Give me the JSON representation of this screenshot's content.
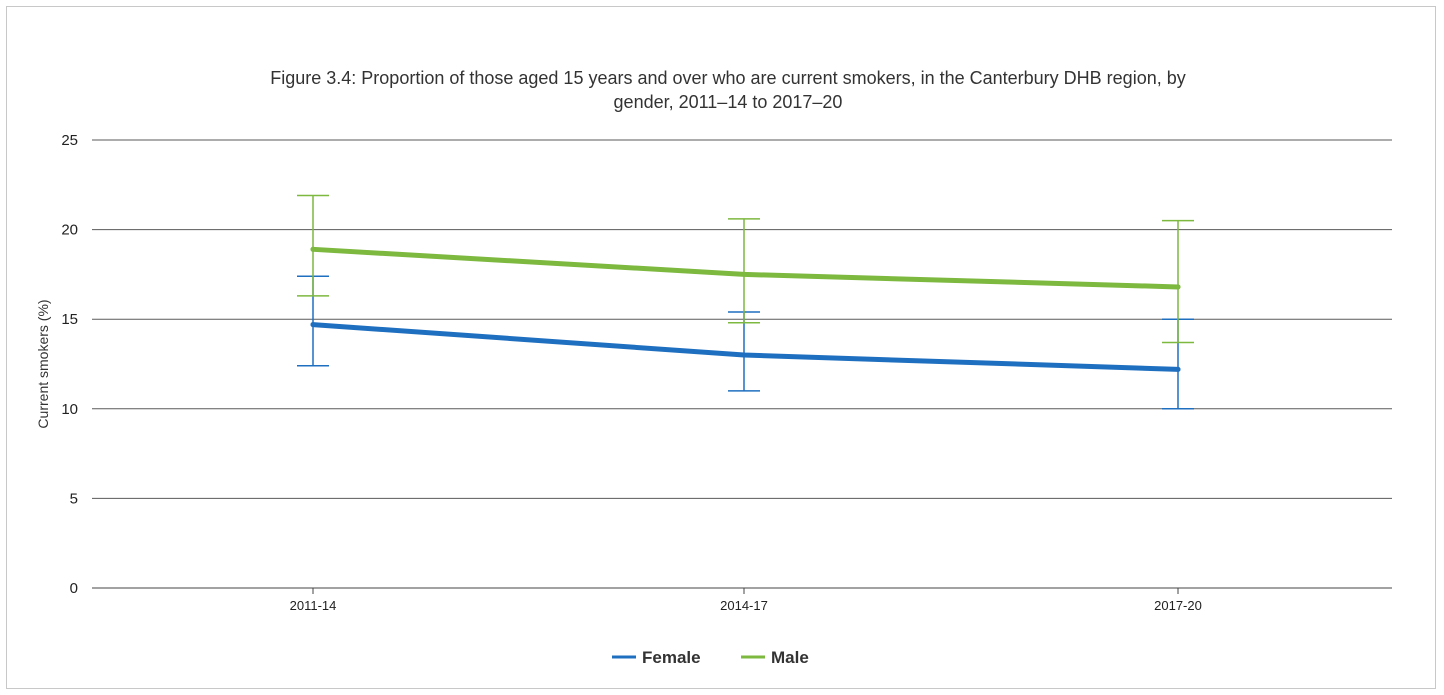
{
  "chart_data": {
    "type": "line",
    "title_line1": "Figure 3.4: Proportion of those aged 15 years and over who are current smokers, in the Canterbury DHB region, by",
    "title_line2": "gender, 2011–14 to 2017–20",
    "ylabel": "Current smokers (%)",
    "xlabel": "",
    "categories": [
      "2011-14",
      "2014-17",
      "2017-20"
    ],
    "ylim": [
      0,
      25
    ],
    "yticks": [
      0,
      5,
      10,
      15,
      20,
      25
    ],
    "grid": true,
    "legend_position": "bottom-center",
    "series": [
      {
        "name": "Female",
        "color": "#1f6fc0",
        "values": [
          14.7,
          13.0,
          12.2
        ],
        "ci_low": [
          12.4,
          11.0,
          10.0
        ],
        "ci_high": [
          17.4,
          15.4,
          15.0
        ]
      },
      {
        "name": "Male",
        "color": "#7db83f",
        "values": [
          18.9,
          17.5,
          16.8
        ],
        "ci_low": [
          16.3,
          14.8,
          13.7
        ],
        "ci_high": [
          21.9,
          20.6,
          20.5
        ]
      }
    ]
  }
}
